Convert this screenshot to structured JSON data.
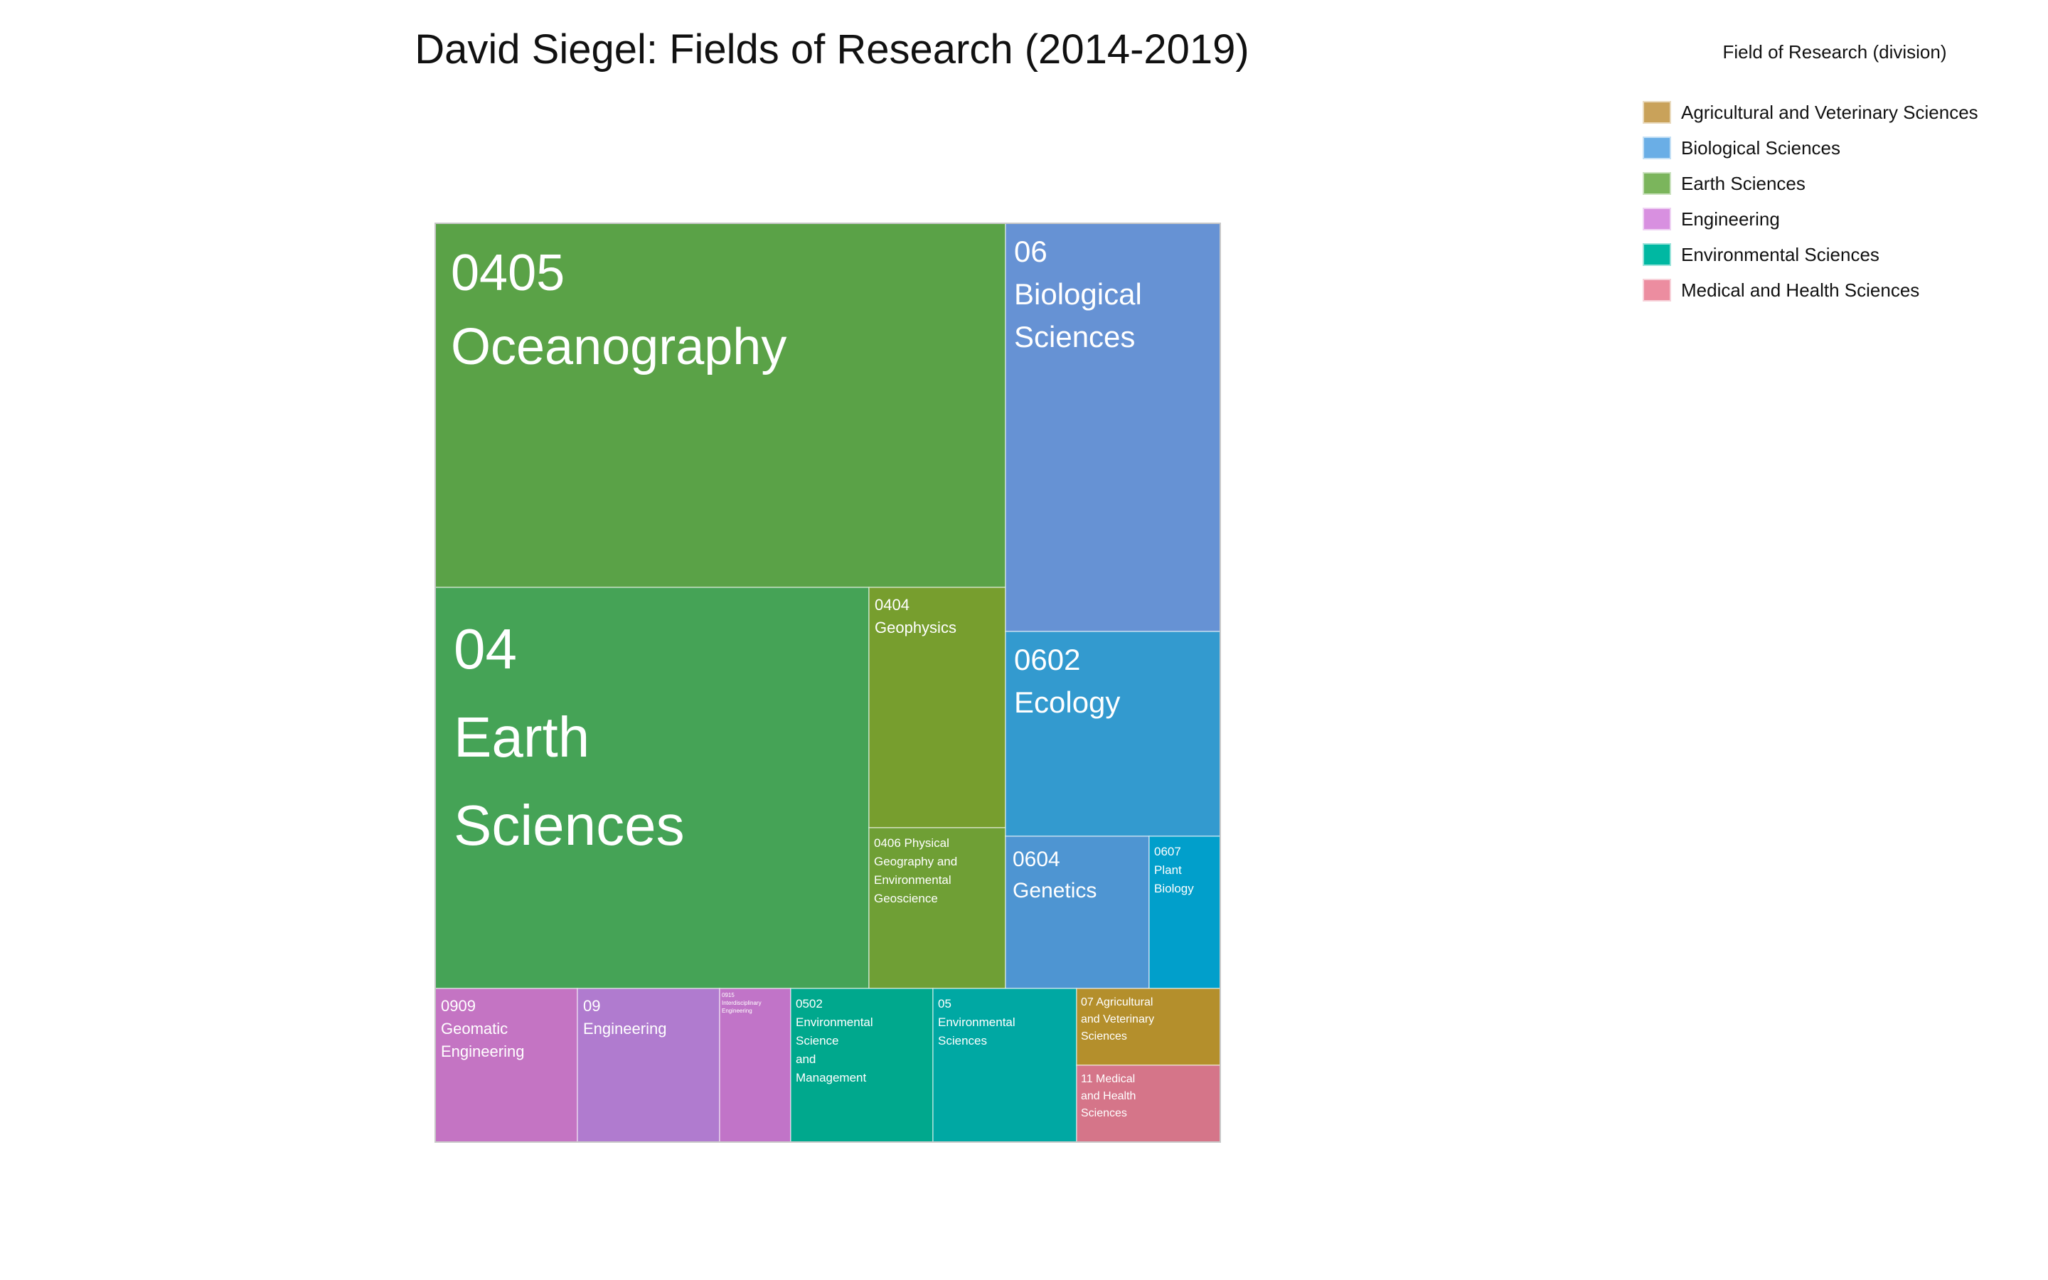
{
  "chart_data": {
    "type": "treemap",
    "title": "David Siegel: Fields of Research (2014-2019)",
    "legend": {
      "title": "Field of Research (division)",
      "placement": "top-right",
      "items": [
        {
          "label": "Agricultural and Veterinary Sciences",
          "color": "#c9a25a"
        },
        {
          "label": "Biological Sciences",
          "color": "#6aaee6"
        },
        {
          "label": "Earth Sciences",
          "color": "#7bb55c"
        },
        {
          "label": "Engineering",
          "color": "#d890e0"
        },
        {
          "label": "Environmental Sciences",
          "color": "#00b8a2"
        },
        {
          "label": "Medical and Health Sciences",
          "color": "#ec8da0"
        }
      ]
    },
    "tiles": [
      {
        "id": "oceanography",
        "code": "0405",
        "name": "Oceanography",
        "label": [
          "0405",
          "Oceanography"
        ],
        "division": "Earth Sciences",
        "color": "#5aa247",
        "size": "xl"
      },
      {
        "id": "earth-sciences",
        "code": "04",
        "name": "Earth Sciences",
        "label": [
          "04",
          "Earth",
          "Sciences"
        ],
        "division": "Earth Sciences",
        "color": "#45a356",
        "size": "xxl"
      },
      {
        "id": "geophysics",
        "code": "0404",
        "name": "Geophysics",
        "label": [
          "0404",
          "Geophysics"
        ],
        "division": "Earth Sciences",
        "color": "#779e2e",
        "size": "s"
      },
      {
        "id": "physical-geography",
        "code": "0406",
        "name": "Physical Geography and Environmental Geoscience",
        "label": [
          "0406 Physical",
          "Geography and",
          "Environmental",
          "Geoscience"
        ],
        "division": "Earth Sciences",
        "color": "#6f9f35",
        "size": "xs"
      },
      {
        "id": "biological-sciences",
        "code": "06",
        "name": "Biological Sciences",
        "label": [
          "06",
          "Biological",
          "Sciences"
        ],
        "division": "Biological Sciences",
        "color": "#6692d4",
        "size": "l"
      },
      {
        "id": "ecology",
        "code": "0602",
        "name": "Ecology",
        "label": [
          "0602",
          "Ecology"
        ],
        "division": "Biological Sciences",
        "color": "#339acf",
        "size": "l"
      },
      {
        "id": "genetics",
        "code": "0604",
        "name": "Genetics",
        "label": [
          "0604",
          "Genetics"
        ],
        "division": "Biological Sciences",
        "color": "#4e95d2",
        "size": "m"
      },
      {
        "id": "plant-biology",
        "code": "0607",
        "name": "Plant Biology",
        "label": [
          "0607",
          "Plant",
          "Biology"
        ],
        "division": "Biological Sciences",
        "color": "#019fcb",
        "size": "xs"
      },
      {
        "id": "geomatic-engineering",
        "code": "0909",
        "name": "Geomatic Engineering",
        "label": [
          "0909",
          "Geomatic",
          "Engineering"
        ],
        "division": "Engineering",
        "color": "#c474c3",
        "size": "s"
      },
      {
        "id": "engineering",
        "code": "09",
        "name": "Engineering",
        "label": [
          "09",
          "Engineering"
        ],
        "division": "Engineering",
        "color": "#b07bcf",
        "size": "s"
      },
      {
        "id": "interdisciplinary-engineering",
        "code": "0915",
        "name": "Interdisciplinary Engineering",
        "label": [
          "0915",
          "Interdisciplinary",
          "Engineering"
        ],
        "division": "Engineering",
        "color": "#c174c8",
        "size": "xxs"
      },
      {
        "id": "environmental-science-management",
        "code": "0502",
        "name": "Environmental Science and Management",
        "label": [
          "0502",
          "Environmental",
          "Science",
          "and",
          "Management"
        ],
        "division": "Environmental Sciences",
        "color": "#00a88d",
        "size": "xs"
      },
      {
        "id": "environmental-sciences",
        "code": "05",
        "name": "Environmental Sciences",
        "label": [
          "05",
          "Environmental",
          "Sciences"
        ],
        "division": "Environmental Sciences",
        "color": "#00a8a3",
        "size": "xs"
      },
      {
        "id": "agricultural-veterinary",
        "code": "07",
        "name": "Agricultural and Veterinary Sciences",
        "label": [
          "07 Agricultural",
          "and Veterinary",
          "Sciences"
        ],
        "division": "Agricultural and Veterinary Sciences",
        "color": "#b48f2c",
        "size": "xxs2"
      },
      {
        "id": "medical-health",
        "code": "11",
        "name": "Medical and Health Sciences",
        "label": [
          "11 Medical",
          "and Health",
          "Sciences"
        ],
        "division": "Medical and Health Sciences",
        "color": "#d57589",
        "size": "xxs2"
      }
    ]
  }
}
